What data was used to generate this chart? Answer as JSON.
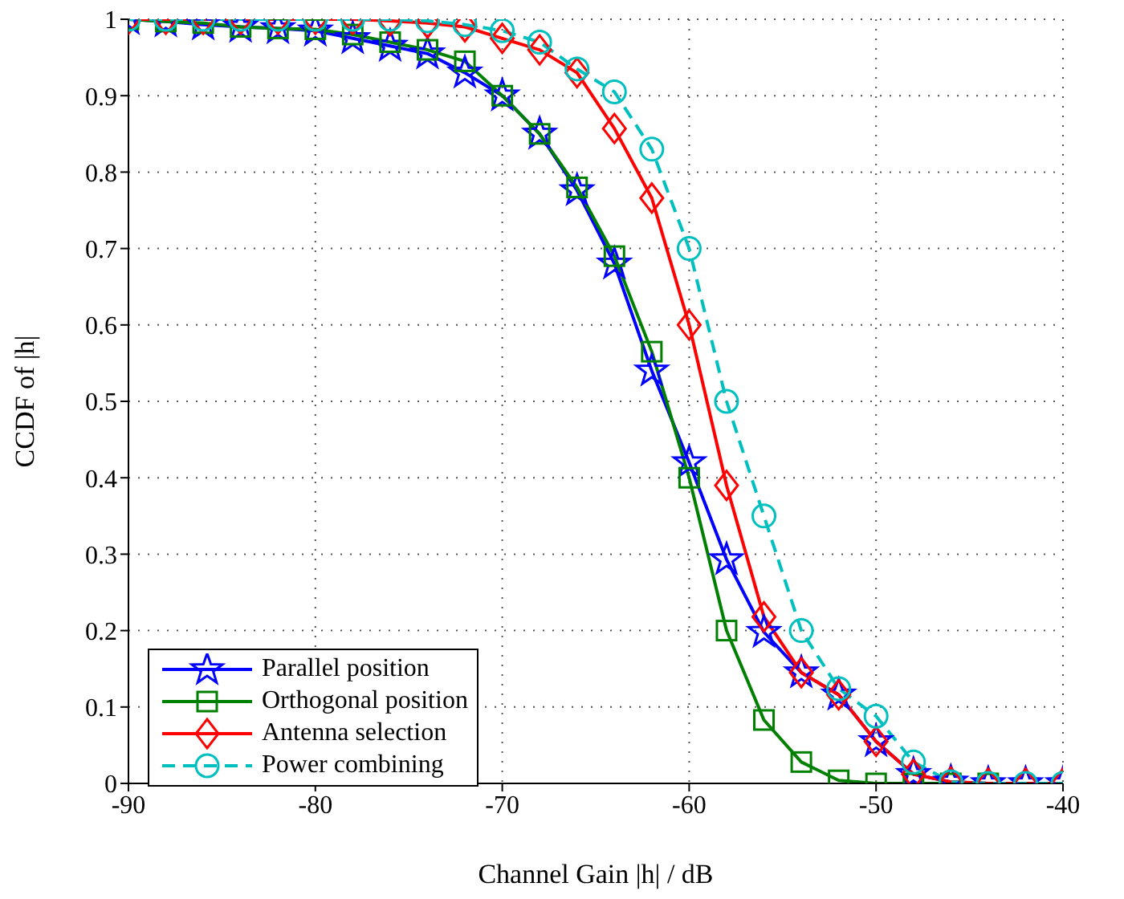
{
  "chart_data": {
    "type": "line",
    "xlabel": "Channel Gain |h| / dB",
    "ylabel": "CCDF of |h|",
    "x": [
      -90,
      -88,
      -86,
      -84,
      -82,
      -80,
      -78,
      -76,
      -74,
      -72,
      -70,
      -68,
      -66,
      -64,
      -62,
      -60,
      -58,
      -56,
      -54,
      -52,
      -50,
      -48,
      -46,
      -44,
      -42,
      -40
    ],
    "series": [
      {
        "name": "Parallel position",
        "color": "#0000ff",
        "marker": "star",
        "line_style": "solid",
        "values": [
          1,
          0.997,
          0.993,
          0.99,
          0.988,
          0.985,
          0.975,
          0.965,
          0.955,
          0.93,
          0.9,
          0.85,
          0.776,
          0.68,
          0.54,
          0.42,
          0.293,
          0.198,
          0.145,
          0.116,
          0.055,
          0.012,
          0.002,
          0,
          0,
          0
        ]
      },
      {
        "name": "Orthogonal position",
        "color": "#008000",
        "marker": "square",
        "line_style": "solid",
        "values": [
          1,
          0.997,
          0.995,
          0.99,
          0.988,
          0.987,
          0.98,
          0.97,
          0.96,
          0.945,
          0.9,
          0.85,
          0.78,
          0.69,
          0.565,
          0.4,
          0.2,
          0.083,
          0.028,
          0.004,
          0,
          0,
          0,
          0,
          null,
          null
        ]
      },
      {
        "name": "Antenna selection",
        "color": "#ff0000",
        "marker": "diamond",
        "line_style": "solid",
        "values": [
          1,
          1,
          1,
          1,
          1,
          1,
          1,
          0.998,
          0.995,
          0.99,
          0.975,
          0.96,
          0.93,
          0.857,
          0.766,
          0.6,
          0.39,
          0.218,
          0.145,
          0.116,
          0.055,
          0.012,
          0.002,
          0,
          0,
          0
        ]
      },
      {
        "name": "Power combining",
        "color": "#00bfbf",
        "marker": "circle",
        "line_style": "dashed",
        "values": [
          1,
          1,
          1,
          1,
          1,
          1,
          1,
          1,
          0.998,
          0.993,
          0.985,
          0.97,
          0.935,
          0.905,
          0.83,
          0.7,
          0.5,
          0.35,
          0.2,
          0.124,
          0.088,
          0.028,
          0.002,
          0,
          0,
          0
        ]
      }
    ],
    "xlim": [
      -90,
      -40
    ],
    "xticks": [
      -90,
      -80,
      -70,
      -60,
      -50,
      -40
    ],
    "ylim": [
      0,
      1
    ],
    "yticks": [
      0,
      0.1,
      0.2,
      0.3,
      0.4,
      0.5,
      0.6,
      0.7,
      0.8,
      0.9,
      1
    ],
    "grid": true,
    "legend": "bottom left"
  }
}
